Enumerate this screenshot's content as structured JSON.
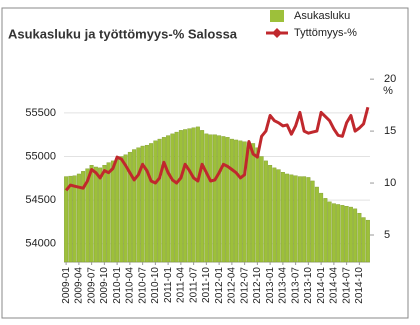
{
  "chart_data": {
    "type": "bar-line",
    "title": "Asukasluku ja työttömyys-% Salossa",
    "y2label": "%",
    "categories": [
      "2009-01",
      null,
      null,
      "2009-04",
      null,
      null,
      "2009-07",
      null,
      null,
      "2009-10",
      null,
      null,
      "2010-01",
      null,
      null,
      "2010-04",
      null,
      null,
      "2010-07",
      null,
      null,
      "2010-10",
      null,
      null,
      "2011-01",
      null,
      null,
      "2011-04",
      null,
      null,
      "2011-07",
      null,
      null,
      "2011-10",
      null,
      null,
      "2012-01",
      null,
      null,
      "2012-04",
      null,
      null,
      "2012-07",
      null,
      null,
      "2012-10",
      null,
      null,
      "2013-01",
      null,
      null,
      "2013-04",
      null,
      null,
      "2013-07",
      null,
      null,
      "2013-10",
      null,
      null,
      "2014-01",
      null,
      null,
      "2014-04",
      null,
      null,
      "2014-07",
      null,
      null,
      "2014-10",
      null,
      null
    ],
    "series": [
      {
        "name": "Asukasluku",
        "color": "#9dc03a",
        "kind": "bar",
        "values": [
          54770,
          54775,
          54780,
          54800,
          54830,
          54860,
          54900,
          54880,
          54870,
          54900,
          54930,
          54950,
          54980,
          55000,
          55020,
          55050,
          55080,
          55100,
          55120,
          55130,
          55150,
          55180,
          55200,
          55220,
          55240,
          55260,
          55280,
          55300,
          55310,
          55320,
          55330,
          55340,
          55300,
          55260,
          55250,
          55250,
          55240,
          55230,
          55220,
          55200,
          55190,
          55180,
          55170,
          55160,
          55150,
          55100,
          55000,
          54950,
          54900,
          54870,
          54850,
          54820,
          54800,
          54790,
          54780,
          54770,
          54770,
          54760,
          54720,
          54650,
          54580,
          54520,
          54480,
          54460,
          54450,
          54440,
          54430,
          54420,
          54400,
          54350,
          54300,
          54270
        ]
      },
      {
        "name": "Tyttömyys-%",
        "color": "#c0282d",
        "kind": "line",
        "axis": "y2",
        "values": [
          9.3,
          9.8,
          9.7,
          9.6,
          9.5,
          10.2,
          11.3,
          11.0,
          10.5,
          11.2,
          11.0,
          11.4,
          12.5,
          12.3,
          11.7,
          11.0,
          10.3,
          10.8,
          11.8,
          11.2,
          10.2,
          10.0,
          10.5,
          12.0,
          11.0,
          10.3,
          10.0,
          10.5,
          11.8,
          11.2,
          10.5,
          10.2,
          11.8,
          11.0,
          10.2,
          10.3,
          11.0,
          11.8,
          11.6,
          11.3,
          11.0,
          10.5,
          10.8,
          14.0,
          12.8,
          12.5,
          14.5,
          15.0,
          16.5,
          16.0,
          15.8,
          15.5,
          15.6,
          14.7,
          15.5,
          16.8,
          15.0,
          14.8,
          14.9,
          15.0,
          16.8,
          16.4,
          16.0,
          15.2,
          14.6,
          14.5,
          15.8,
          16.5,
          15.0,
          15.3,
          15.7,
          17.3
        ]
      }
    ],
    "ylim": [
      53790,
      55935
    ],
    "yticks": [
      54000,
      54500,
      55000,
      55500
    ],
    "y2lim": [
      2.4,
      20.4
    ],
    "y2ticks": [
      5,
      10,
      15,
      20
    ],
    "grid": true,
    "legend": "top-right"
  }
}
